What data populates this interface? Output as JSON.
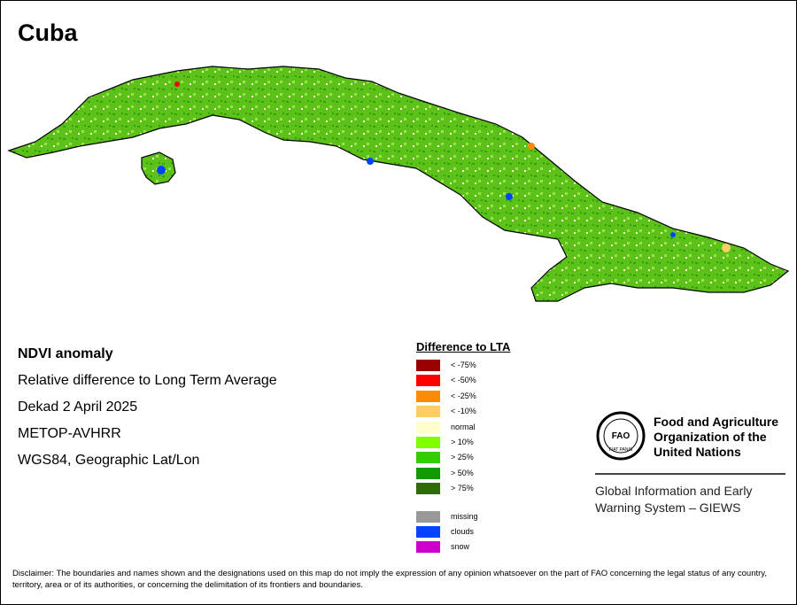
{
  "map_title": "Cuba",
  "info": {
    "heading": "NDVI anomaly",
    "line1": "Relative difference to Long Term Average",
    "line2": "Dekad 2 April 2025",
    "line3": "METOP-AVHRR",
    "line4": "WGS84, Geographic Lat/Lon"
  },
  "legend": {
    "title": "Difference to LTA",
    "classes": [
      {
        "label": "< -75%",
        "color": "#990000"
      },
      {
        "label": "< -50%",
        "color": "#ff0000"
      },
      {
        "label": "< -25%",
        "color": "#ff8c00"
      },
      {
        "label": "< -10%",
        "color": "#ffcc66"
      },
      {
        "label": "normal",
        "color": "#ffffcc"
      },
      {
        "label": "> 10%",
        "color": "#7fff00"
      },
      {
        "label": "> 25%",
        "color": "#33cc00"
      },
      {
        "label": "> 50%",
        "color": "#119900"
      },
      {
        "label": "> 75%",
        "color": "#2e6b00"
      }
    ],
    "extra": [
      {
        "label": "missing",
        "color": "#999999"
      },
      {
        "label": "clouds",
        "color": "#0044ff"
      },
      {
        "label": "snow",
        "color": "#cc00cc"
      }
    ]
  },
  "org": {
    "name": "Food and Agriculture Organization of the United Nations",
    "logo_letters": "FAO",
    "logo_motto": "FIAT PANIS",
    "system": "Global Information and Early Warning System – GIEWS"
  },
  "disclaimer": "Disclaimer: The boundaries and names shown and the designations used on this map do not imply the expression of any opinion whatsoever on the part of FAO concerning the legal status of any country, territory, area or of its authorities, or concerning the delimitation of its frontiers and boundaries.",
  "colors": {
    "land_base": "#5cc21a",
    "land_dark": "#33a00a",
    "land_light": "#9be34a",
    "normal": "#ffffcc",
    "clouds": "#0044ff",
    "outline": "#000000"
  }
}
